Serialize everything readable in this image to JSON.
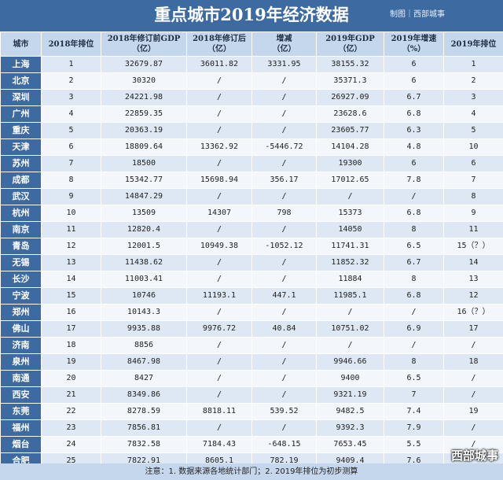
{
  "title": "重点城市2019年经济数据",
  "credit": "制图｜西部城事",
  "columns": [
    "城市",
    "2018年排位",
    "2018年修订前GDP\n（亿）",
    "2018年修订后\n（亿）",
    "增减\n（亿）",
    "2019年GDP\n（亿）",
    "2019年增速\n（%）",
    "2019年排位"
  ],
  "rows": [
    [
      "上海",
      "1",
      "32679.87",
      "36011.82",
      "3331.95",
      "38155.32",
      "6",
      "1"
    ],
    [
      "北京",
      "2",
      "30320",
      "/",
      "/",
      "35371.3",
      "6",
      "2"
    ],
    [
      "深圳",
      "3",
      "24221.98",
      "/",
      "/",
      "26927.09",
      "6.7",
      "3"
    ],
    [
      "广州",
      "4",
      "22859.35",
      "/",
      "/",
      "23628.6",
      "6.8",
      "4"
    ],
    [
      "重庆",
      "5",
      "20363.19",
      "/",
      "/",
      "23605.77",
      "6.3",
      "5"
    ],
    [
      "天津",
      "6",
      "18809.64",
      "13362.92",
      "-5446.72",
      "14104.28",
      "4.8",
      "10"
    ],
    [
      "苏州",
      "7",
      "18500",
      "/",
      "/",
      "19300",
      "6",
      "6"
    ],
    [
      "成都",
      "8",
      "15342.77",
      "15698.94",
      "356.17",
      "17012.65",
      "7.8",
      "7"
    ],
    [
      "武汉",
      "9",
      "14847.29",
      "/",
      "/",
      "/",
      "/",
      "8"
    ],
    [
      "杭州",
      "10",
      "13509",
      "14307",
      "798",
      "15373",
      "6.8",
      "9"
    ],
    [
      "南京",
      "11",
      "12820.4",
      "/",
      "/",
      "14050",
      "8",
      "11"
    ],
    [
      "青岛",
      "12",
      "12001.5",
      "10949.38",
      "-1052.12",
      "11741.31",
      "6.5",
      "15（？）"
    ],
    [
      "无锡",
      "13",
      "11438.62",
      "/",
      "/",
      "11852.32",
      "6.7",
      "14"
    ],
    [
      "长沙",
      "14",
      "11003.41",
      "/",
      "/",
      "11884",
      "8",
      "13"
    ],
    [
      "宁波",
      "15",
      "10746",
      "11193.1",
      "447.1",
      "11985.1",
      "6.8",
      "12"
    ],
    [
      "郑州",
      "16",
      "10143.3",
      "/",
      "/",
      "/",
      "/",
      "16（？）"
    ],
    [
      "佛山",
      "17",
      "9935.88",
      "9976.72",
      "40.84",
      "10751.02",
      "6.9",
      "17"
    ],
    [
      "济南",
      "18",
      "8856",
      "/",
      "/",
      "/",
      "/",
      "/"
    ],
    [
      "泉州",
      "19",
      "8467.98",
      "/",
      "/",
      "9946.66",
      "8",
      "18"
    ],
    [
      "南通",
      "20",
      "8427",
      "/",
      "/",
      "9400",
      "6.5",
      "/"
    ],
    [
      "西安",
      "21",
      "8349.86",
      "/",
      "/",
      "9321.19",
      "7",
      "/"
    ],
    [
      "东莞",
      "22",
      "8278.59",
      "8818.11",
      "539.52",
      "9482.5",
      "7.4",
      "19"
    ],
    [
      "福州",
      "23",
      "7856.81",
      "/",
      "/",
      "9392.3",
      "7.9",
      "/"
    ],
    [
      "烟台",
      "24",
      "7832.58",
      "7184.43",
      "-648.15",
      "7653.45",
      "5.5",
      "/"
    ],
    [
      "合肥",
      "25",
      "7822.91",
      "8605.1",
      "782.19",
      "9409.4",
      "7.6",
      ""
    ]
  ],
  "note": "注意：1. 数据来源各地统计部门；2. 2019年排位为初步测算",
  "watermark": "西部城事",
  "colors": {
    "header_bg": "#3d6ba1",
    "header_row_bg": "#c5d7ec",
    "row_odd": "#dde8f4",
    "row_even": "#f3f7fb"
  }
}
